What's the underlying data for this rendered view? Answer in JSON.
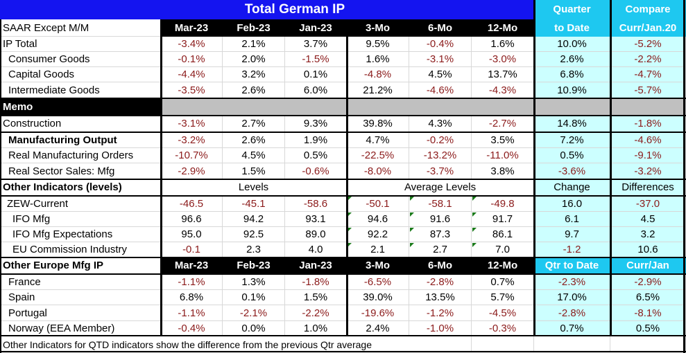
{
  "title": "Total German IP",
  "colors": {
    "title_bg": "#1414f0",
    "cyan_header": "#1ec8f0",
    "cyan_fill": "#ccffff",
    "negative": "#8b1a1a",
    "memo_gray": "#c0c0c0"
  },
  "header": {
    "label": "SAAR Except M/M",
    "cols": [
      "Mar-23",
      "Feb-23",
      "Jan-23",
      "3-Mo",
      "6-Mo",
      "12-Mo"
    ],
    "qtd_top": "Quarter",
    "qtd_bottom": "to Date",
    "cmp_top": "Compare",
    "cmp_bottom": "Curr/Jan.20"
  },
  "ip_rows": [
    {
      "label": "IP Total",
      "values": [
        "-3.4%",
        "2.1%",
        "3.7%",
        "9.5%",
        "-0.4%",
        "1.6%",
        "10.0%",
        "-5.2%"
      ]
    },
    {
      "label": "Consumer Goods",
      "values": [
        "-0.1%",
        "2.0%",
        "-1.5%",
        "1.6%",
        "-3.1%",
        "-3.0%",
        "2.6%",
        "-2.2%"
      ]
    },
    {
      "label": "Capital Goods",
      "values": [
        "-4.4%",
        "3.2%",
        "0.1%",
        "-4.8%",
        "4.5%",
        "13.7%",
        "6.8%",
        "-4.7%"
      ]
    },
    {
      "label": "Intermediate Goods",
      "values": [
        "-3.5%",
        "2.6%",
        "6.0%",
        "21.2%",
        "-4.6%",
        "-4.3%",
        "10.9%",
        "-5.7%"
      ]
    }
  ],
  "memo": {
    "label": "Memo"
  },
  "memo_rows": [
    {
      "label": "Construction",
      "values": [
        "-3.1%",
        "2.7%",
        "9.3%",
        "39.8%",
        "4.3%",
        "-2.7%",
        "14.8%",
        "-1.8%"
      ]
    },
    {
      "label": "Manufacturing Output",
      "values": [
        "-3.2%",
        "2.6%",
        "1.9%",
        "4.7%",
        "-0.2%",
        "3.5%",
        "7.2%",
        "-4.6%"
      ]
    },
    {
      "label": "Real Manufacturing Orders",
      "values": [
        "-10.7%",
        "4.5%",
        "0.5%",
        "-22.5%",
        "-13.2%",
        "-11.0%",
        "0.5%",
        "-9.1%"
      ]
    },
    {
      "label": "Real Sector Sales: Mfg",
      "values": [
        "-2.9%",
        "1.5%",
        "-0.6%",
        "-8.0%",
        "-3.7%",
        "3.8%",
        "-3.6%",
        "-3.2%"
      ]
    }
  ],
  "indicators": {
    "label": "Other Indicators (levels)",
    "levels": "Levels",
    "avg_levels": "Average Levels",
    "change": "Change",
    "differences": "Differences"
  },
  "indicator_rows": [
    {
      "label": "ZEW-Current",
      "values": [
        "-46.5",
        "-45.1",
        "-58.6",
        "-50.1",
        "-58.1",
        "-49.8",
        "16.0",
        "-37.0"
      ]
    },
    {
      "label": "IFO Mfg",
      "values": [
        "96.6",
        "94.2",
        "93.1",
        "94.6",
        "91.6",
        "91.7",
        "6.1",
        "4.5"
      ]
    },
    {
      "label": "IFO Mfg Expectations",
      "values": [
        "95.0",
        "92.5",
        "89.0",
        "92.2",
        "87.3",
        "86.1",
        "9.7",
        "3.2"
      ]
    },
    {
      "label": "EU Commission Industry",
      "values": [
        "-0.1",
        "2.3",
        "4.0",
        "2.1",
        "2.7",
        "7.0",
        "-1.2",
        "10.6"
      ]
    }
  ],
  "europe": {
    "label": "Other Europe Mfg IP",
    "cols": [
      "Mar-23",
      "Feb-23",
      "Jan-23",
      "3-Mo",
      "6-Mo",
      "12-Mo",
      "Qtr to Date",
      "Curr/Jan"
    ]
  },
  "europe_rows": [
    {
      "label": "France",
      "values": [
        "-1.1%",
        "1.3%",
        "-1.8%",
        "-6.5%",
        "-2.8%",
        "0.7%",
        "-2.3%",
        "-2.9%"
      ]
    },
    {
      "label": "Spain",
      "values": [
        "6.8%",
        "0.1%",
        "1.5%",
        "39.0%",
        "13.5%",
        "5.7%",
        "17.0%",
        "6.5%"
      ]
    },
    {
      "label": "Portugal",
      "values": [
        "-1.1%",
        "-2.1%",
        "-2.2%",
        "-19.6%",
        "-1.2%",
        "-4.5%",
        "-2.8%",
        "-8.1%"
      ]
    },
    {
      "label": "Norway (EEA Member)",
      "values": [
        "-0.4%",
        "0.0%",
        "1.0%",
        "2.4%",
        "-1.0%",
        "-0.3%",
        "0.7%",
        "0.5%"
      ]
    }
  ],
  "footer": "Other Indicators for QTD indicators show the difference from the previous Qtr average"
}
